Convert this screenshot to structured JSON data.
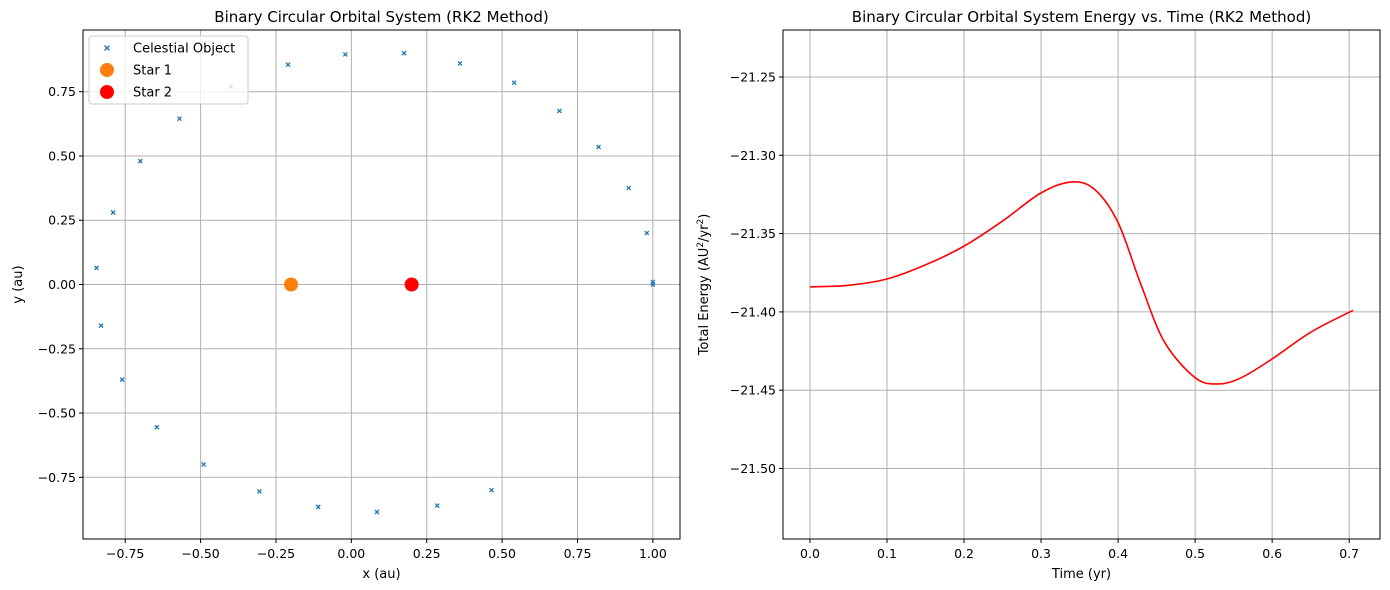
{
  "chart_data": [
    {
      "type": "scatter",
      "title": "Binary Circular Orbital System (RK2 Method)",
      "xlabel": "x (au)",
      "ylabel": "y (au)",
      "xlim": [
        -0.89,
        1.09
      ],
      "ylim": [
        -0.99,
        0.99
      ],
      "xticks": [
        -0.75,
        -0.5,
        -0.25,
        0.0,
        0.25,
        0.5,
        0.75,
        1.0
      ],
      "xtick_labels": [
        "−0.75",
        "−0.50",
        "−0.25",
        "0.00",
        "0.25",
        "0.50",
        "0.75",
        "1.00"
      ],
      "yticks": [
        -0.75,
        -0.5,
        -0.25,
        0.0,
        0.25,
        0.5,
        0.75
      ],
      "ytick_labels": [
        "−0.75",
        "−0.50",
        "−0.25",
        "0.00",
        "0.25",
        "0.50",
        "0.75"
      ],
      "grid": true,
      "legend_position": "upper-left",
      "series": [
        {
          "name": "Celestial Object",
          "marker": "x",
          "color": "#1f77b4",
          "points": [
            [
              1.0,
              0.0
            ],
            [
              1.0,
              0.01
            ],
            [
              0.98,
              0.2
            ],
            [
              0.92,
              0.375
            ],
            [
              0.82,
              0.535
            ],
            [
              0.69,
              0.675
            ],
            [
              0.54,
              0.785
            ],
            [
              0.36,
              0.86
            ],
            [
              0.175,
              0.9
            ],
            [
              -0.02,
              0.895
            ],
            [
              -0.21,
              0.855
            ],
            [
              -0.4,
              0.77
            ],
            [
              -0.57,
              0.645
            ],
            [
              -0.7,
              0.48
            ],
            [
              -0.79,
              0.28
            ],
            [
              -0.845,
              0.065
            ],
            [
              -0.83,
              -0.16
            ],
            [
              -0.76,
              -0.37
            ],
            [
              -0.645,
              -0.555
            ],
            [
              -0.49,
              -0.7
            ],
            [
              -0.305,
              -0.805
            ],
            [
              -0.11,
              -0.865
            ],
            [
              0.085,
              -0.885
            ],
            [
              0.285,
              -0.86
            ],
            [
              0.465,
              -0.8
            ]
          ]
        },
        {
          "name": "Star 1",
          "marker": "circle",
          "color": "#ff7f0e",
          "points": [
            [
              -0.2,
              0.0
            ]
          ]
        },
        {
          "name": "Star 2",
          "marker": "circle",
          "color": "#ff0000",
          "points": [
            [
              0.2,
              0.0
            ]
          ]
        }
      ]
    },
    {
      "type": "line",
      "title": "Binary Circular Orbital System Energy vs. Time (RK2 Method)",
      "xlabel": "Time (yr)",
      "ylabel_main": "Total Energy (AU",
      "ylabel_exp1": "2",
      "ylabel_mid": "/yr",
      "ylabel_exp2": "2",
      "ylabel_end": ")",
      "xlim": [
        -0.035,
        0.74
      ],
      "ylim": [
        -21.545,
        -21.22
      ],
      "xticks": [
        0.0,
        0.1,
        0.2,
        0.3,
        0.4,
        0.5,
        0.6,
        0.7
      ],
      "xtick_labels": [
        "0.0",
        "0.1",
        "0.2",
        "0.3",
        "0.4",
        "0.5",
        "0.6",
        "0.7"
      ],
      "yticks": [
        -21.25,
        -21.3,
        -21.35,
        -21.4,
        -21.45,
        -21.5
      ],
      "ytick_labels": [
        "−21.25",
        "−21.30",
        "−21.35",
        "−21.40",
        "−21.45",
        "−21.50"
      ],
      "grid": true,
      "series": [
        {
          "color": "#ff0000",
          "points": [
            [
              0.0,
              -21.384
            ],
            [
              0.05,
              -21.383
            ],
            [
              0.1,
              -21.379
            ],
            [
              0.15,
              -21.37
            ],
            [
              0.2,
              -21.358
            ],
            [
              0.25,
              -21.342
            ],
            [
              0.3,
              -21.324
            ],
            [
              0.34,
              -21.317
            ],
            [
              0.37,
              -21.322
            ],
            [
              0.4,
              -21.343
            ],
            [
              0.43,
              -21.383
            ],
            [
              0.46,
              -21.419
            ],
            [
              0.5,
              -21.442
            ],
            [
              0.53,
              -21.446
            ],
            [
              0.56,
              -21.442
            ],
            [
              0.6,
              -21.43
            ],
            [
              0.65,
              -21.413
            ],
            [
              0.705,
              -21.399
            ]
          ]
        }
      ]
    }
  ]
}
